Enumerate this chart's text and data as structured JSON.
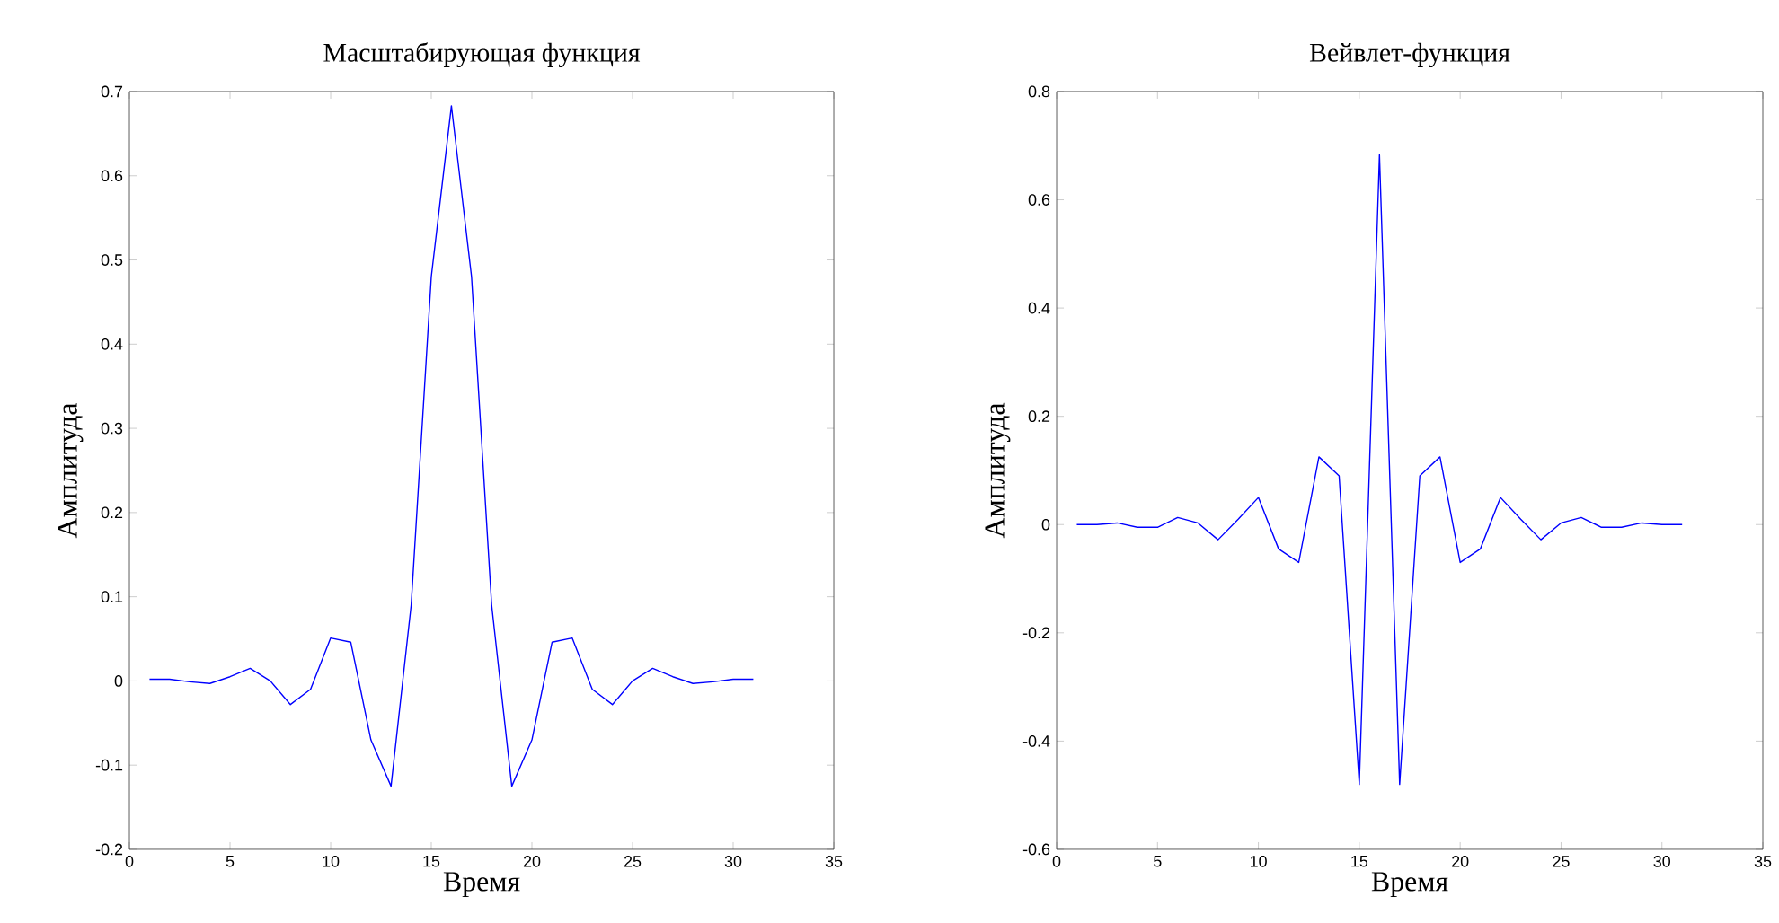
{
  "chart_data": [
    {
      "type": "line",
      "title": "Масштабирующая функция",
      "xlabel": "Время",
      "ylabel": "Амплитуда",
      "color": "#0000ff",
      "x": [
        1,
        2,
        3,
        4,
        5,
        6,
        7,
        8,
        9,
        10,
        11,
        12,
        13,
        14,
        15,
        16,
        17,
        18,
        19,
        20,
        21,
        22,
        23,
        24,
        25,
        26,
        27,
        28,
        29,
        30,
        31
      ],
      "values": [
        0.002,
        0.002,
        -0.001,
        -0.003,
        0.005,
        0.015,
        0,
        -0.028,
        -0.01,
        0.051,
        0.046,
        -0.07,
        -0.125,
        0.09,
        0.48,
        0.683,
        0.48,
        0.09,
        -0.125,
        -0.07,
        0.046,
        0.051,
        -0.01,
        -0.028,
        0,
        0.015,
        0.005,
        -0.003,
        -0.001,
        0.002,
        0.002
      ],
      "xlim": [
        0,
        35
      ],
      "ylim": [
        -0.2,
        0.7
      ],
      "xticks": [
        0,
        5,
        10,
        15,
        20,
        25,
        30,
        35
      ],
      "yticks": [
        -0.2,
        -0.1,
        0,
        0.1,
        0.2,
        0.3,
        0.4,
        0.5,
        0.6,
        0.7
      ]
    },
    {
      "type": "line",
      "title": "Вейвлет-функция",
      "xlabel": "Время",
      "ylabel": "Амплитуда",
      "color": "#0000ff",
      "x": [
        1,
        2,
        3,
        4,
        5,
        6,
        7,
        8,
        9,
        10,
        11,
        12,
        13,
        14,
        15,
        16,
        17,
        18,
        19,
        20,
        21,
        22,
        23,
        24,
        25,
        26,
        27,
        28,
        29,
        30,
        31
      ],
      "values": [
        0,
        0,
        0.003,
        -0.005,
        -0.005,
        0.013,
        0.003,
        -0.028,
        0.01,
        0.05,
        -0.045,
        -0.07,
        0.125,
        0.09,
        -0.48,
        0.683,
        -0.48,
        0.09,
        0.125,
        -0.07,
        -0.045,
        0.05,
        0.01,
        -0.028,
        0.003,
        0.013,
        -0.005,
        -0.005,
        0.003,
        0,
        0
      ],
      "xlim": [
        0,
        35
      ],
      "ylim": [
        -0.6,
        0.8
      ],
      "xticks": [
        0,
        5,
        10,
        15,
        20,
        25,
        30,
        35
      ],
      "yticks": [
        -0.6,
        -0.4,
        -0.2,
        0,
        0.2,
        0.4,
        0.6,
        0.8
      ]
    }
  ]
}
